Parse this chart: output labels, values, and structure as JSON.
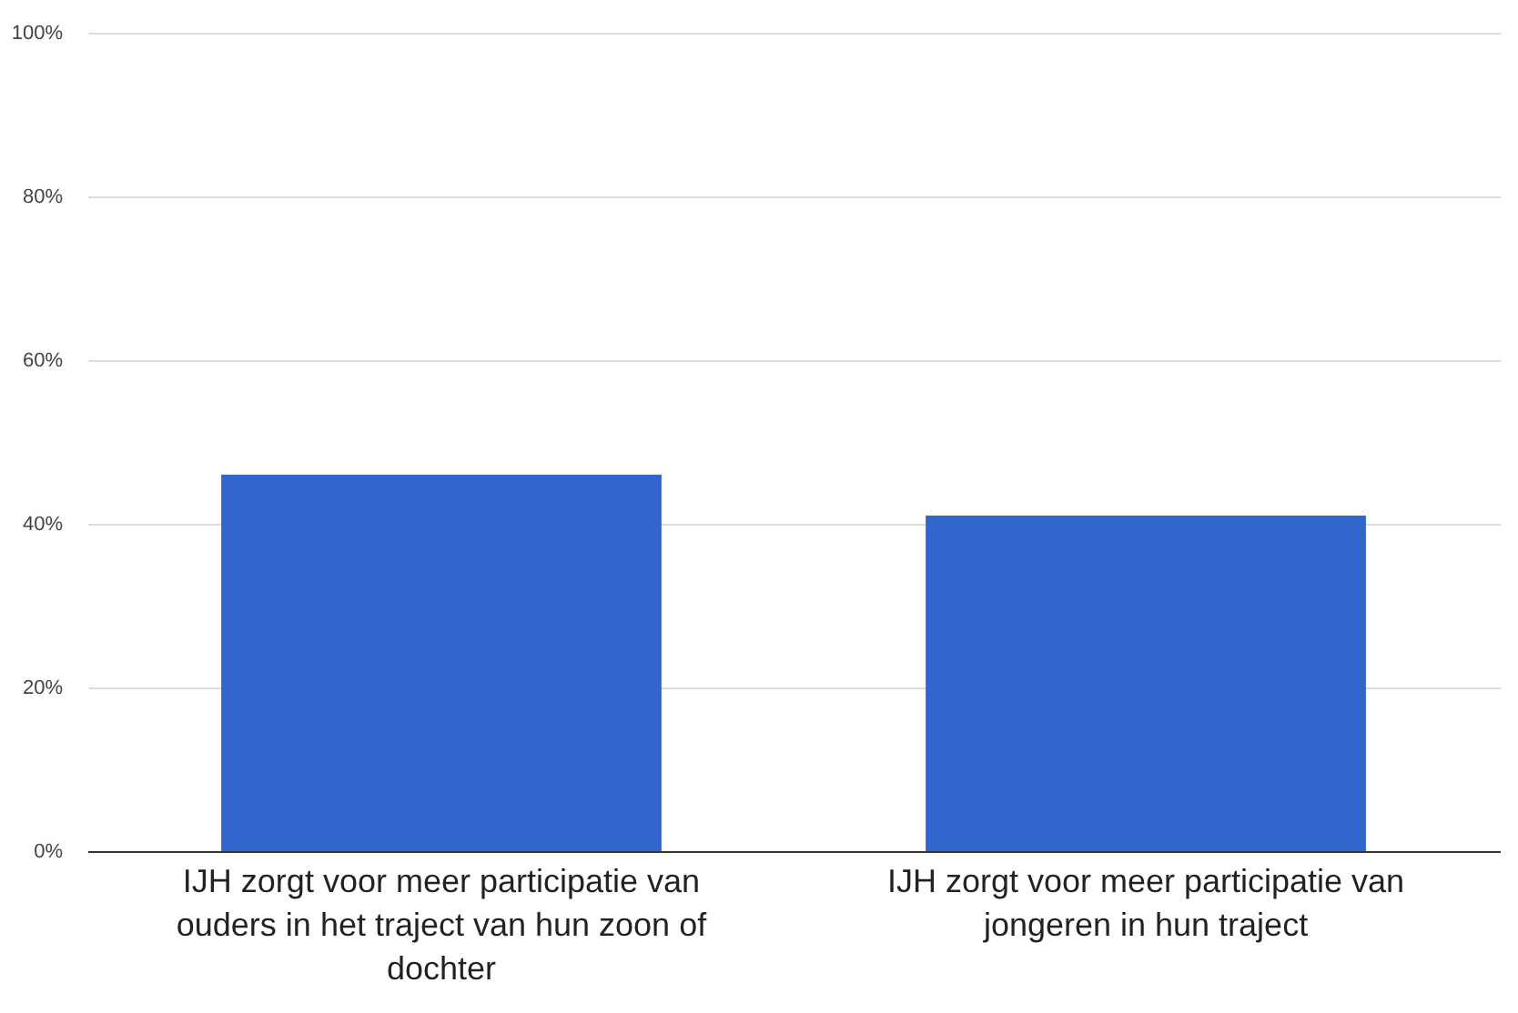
{
  "chart_data": {
    "type": "bar",
    "categories": [
      "IJH zorgt voor meer participatie van ouders in het traject van hun zoon of dochter",
      "IJH zorgt voor meer participatie van jongeren in hun traject"
    ],
    "values": [
      46,
      41
    ],
    "color": "#3366cc",
    "ylim": [
      0,
      100
    ],
    "yticks": [
      {
        "value": 0,
        "label": "0%"
      },
      {
        "value": 20,
        "label": "20%"
      },
      {
        "value": 40,
        "label": "40%"
      },
      {
        "value": 60,
        "label": "60%"
      },
      {
        "value": 80,
        "label": "80%"
      },
      {
        "value": 100,
        "label": "100%"
      }
    ],
    "grid": "y"
  }
}
